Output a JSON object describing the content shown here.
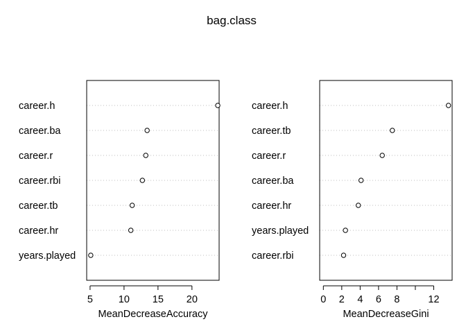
{
  "title": "bag.class",
  "chart_data": [
    {
      "type": "scatter",
      "subtype": "dotchart",
      "xlabel": "MeanDecreaseAccuracy",
      "xlim": [
        4.5,
        24.0
      ],
      "xticks": [
        5,
        10,
        15,
        20
      ],
      "grid": "dotted horizontal guide lines",
      "categories": [
        "career.h",
        "career.ba",
        "career.r",
        "career.rbi",
        "career.tb",
        "career.hr",
        "years.played"
      ],
      "values": [
        23.8,
        13.4,
        13.2,
        12.7,
        11.2,
        11.0,
        5.1
      ]
    },
    {
      "type": "scatter",
      "subtype": "dotchart",
      "xlabel": "MeanDecreaseGini",
      "xlim": [
        -0.4,
        14.0
      ],
      "xticks": [
        0,
        2,
        4,
        6,
        8,
        10,
        12
      ],
      "xtick_labels": [
        "0",
        "2",
        "4",
        "6",
        "8",
        "",
        "12"
      ],
      "grid": "dotted horizontal guide lines",
      "categories": [
        "career.h",
        "career.tb",
        "career.r",
        "career.ba",
        "career.hr",
        "years.played",
        "career.rbi"
      ],
      "values": [
        13.6,
        7.5,
        6.4,
        4.1,
        3.8,
        2.4,
        2.2
      ]
    }
  ]
}
